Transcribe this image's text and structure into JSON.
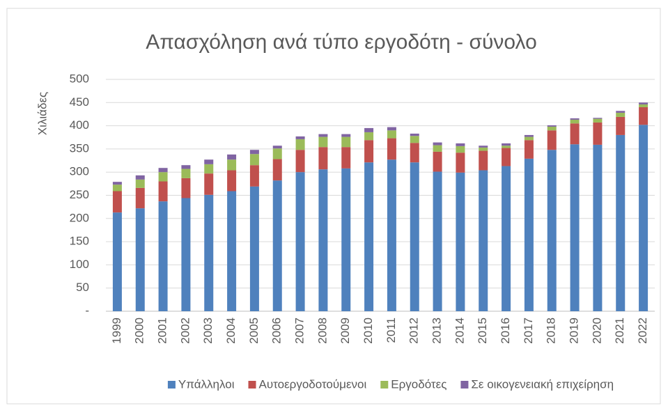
{
  "chart_data": {
    "type": "stacked_bar",
    "title": "Απασχόληση ανά τύπο εργοδότη - σύνολο",
    "y_label": "Χιλιάδες",
    "categories": [
      "1999",
      "2000",
      "2001",
      "2002",
      "2003",
      "2004",
      "2005",
      "2006",
      "2007",
      "2008",
      "2009",
      "2010",
      "2011",
      "2012",
      "2013",
      "2014",
      "2015",
      "2016",
      "2017",
      "2018",
      "2019",
      "2020",
      "2021",
      "2022"
    ],
    "series": [
      {
        "name": "Υπάλληλοι",
        "color": "#4f81bd",
        "values": [
          213,
          222,
          237,
          244,
          251,
          259,
          269,
          282,
          300,
          306,
          308,
          321,
          327,
          321,
          301,
          299,
          304,
          313,
          329,
          348,
          360,
          359,
          380,
          402
        ]
      },
      {
        "name": "Αυτοεργοδοτούμενοι",
        "color": "#c0504d",
        "values": [
          46,
          44,
          43,
          43,
          46,
          45,
          46,
          46,
          48,
          48,
          46,
          48,
          46,
          42,
          43,
          43,
          42,
          39,
          40,
          42,
          45,
          48,
          39,
          38
        ]
      },
      {
        "name": "Εργοδότες",
        "color": "#9bbb59",
        "values": [
          14,
          18,
          20,
          20,
          20,
          23,
          24,
          23,
          23,
          22,
          22,
          17,
          17,
          15,
          14,
          14,
          7,
          5,
          7,
          8,
          8,
          8,
          9,
          6
        ]
      },
      {
        "name": "Σε οικογενειακή επιχείρηση",
        "color": "#8064a2",
        "values": [
          6,
          9,
          9,
          8,
          10,
          11,
          9,
          6,
          6,
          6,
          6,
          9,
          7,
          5,
          6,
          6,
          4,
          5,
          4,
          3,
          3,
          2,
          4,
          4
        ]
      }
    ],
    "ylim": [
      0,
      500
    ],
    "yticks": [
      {
        "value": 0,
        "label": "-"
      },
      50,
      100,
      150,
      200,
      250,
      300,
      350,
      400,
      450,
      500
    ],
    "grid": true,
    "legend": "bottom"
  }
}
